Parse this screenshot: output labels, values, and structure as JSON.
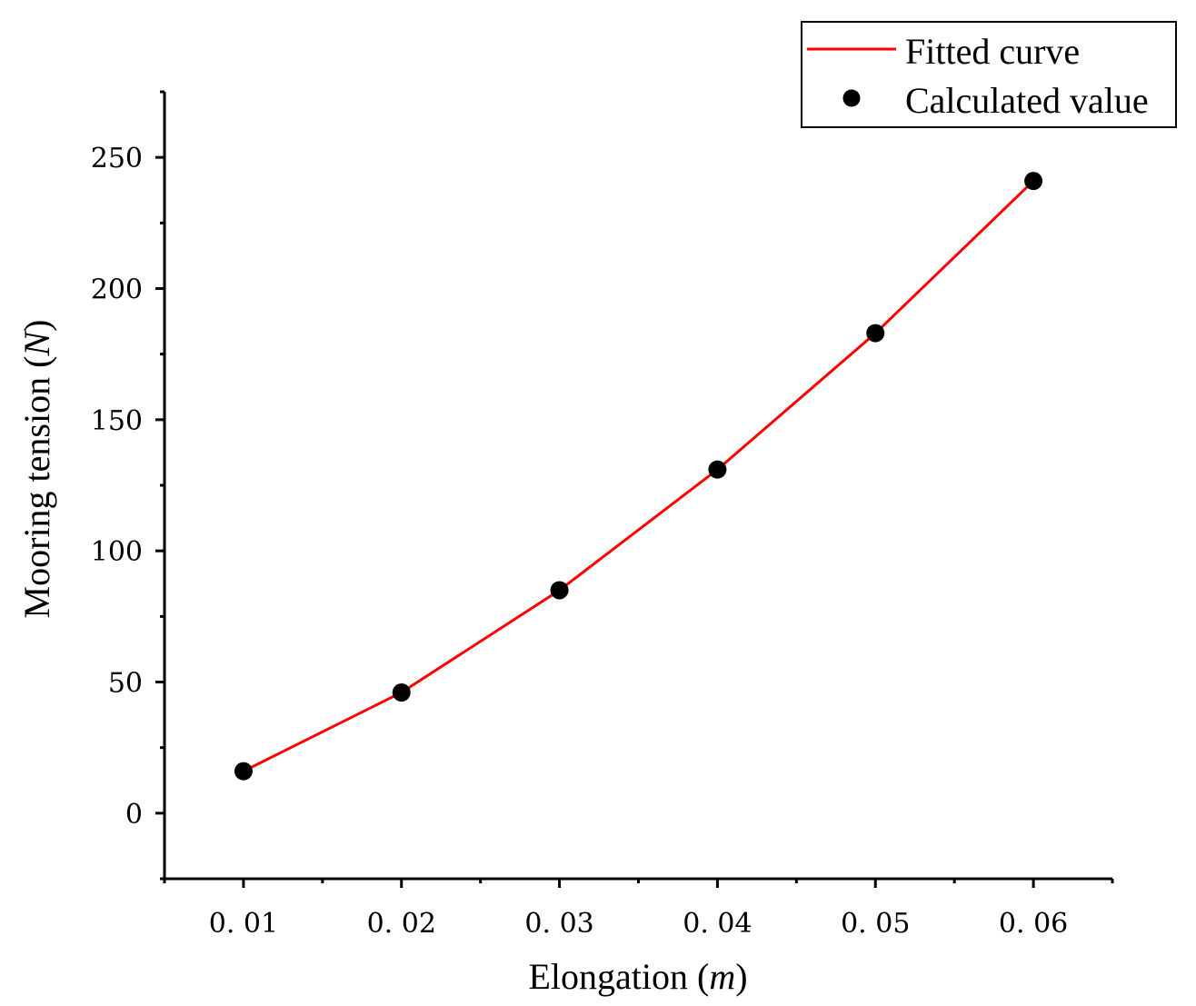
{
  "chart_data": {
    "type": "line",
    "x": [
      0.01,
      0.02,
      0.03,
      0.04,
      0.05,
      0.06
    ],
    "series": [
      {
        "name": "Fitted curve",
        "kind": "line",
        "color": "#ff0000",
        "values": [
          16,
          46,
          85,
          131,
          183,
          241
        ]
      },
      {
        "name": "Calculated value",
        "kind": "scatter",
        "color": "#000000",
        "values": [
          16,
          46,
          85,
          131,
          183,
          241
        ]
      }
    ],
    "xlabel": "Elongation",
    "xlabel_unit": "m",
    "ylabel": "Mooring tension",
    "ylabel_unit": "N",
    "xlim": [
      0.005,
      0.065
    ],
    "ylim": [
      -25,
      275
    ],
    "xticks": [
      0.01,
      0.02,
      0.03,
      0.04,
      0.05,
      0.06
    ],
    "xtick_labels": [
      "0. 01",
      "0. 02",
      "0. 03",
      "0. 04",
      "0. 05",
      "0. 06"
    ],
    "yticks": [
      0,
      50,
      100,
      150,
      200,
      250
    ],
    "ytick_labels": [
      "0",
      "50",
      "100",
      "150",
      "200",
      "250"
    ],
    "legend": {
      "position": "top-right",
      "entries": [
        "Fitted curve",
        "Calculated value"
      ]
    },
    "grid": false
  }
}
